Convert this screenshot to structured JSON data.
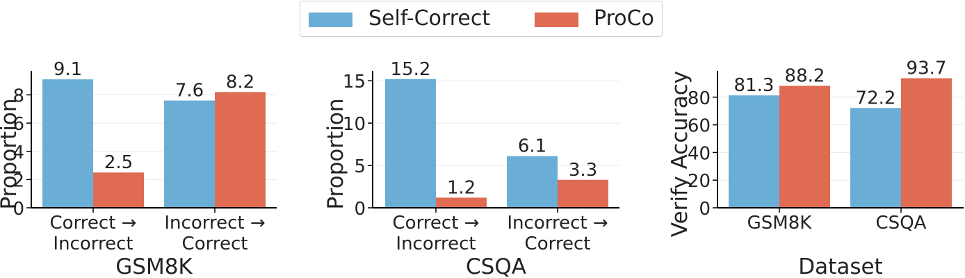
{
  "legend": {
    "items": [
      {
        "label": "Self-Correct",
        "color": "#6aaed6"
      },
      {
        "label": "ProCo",
        "color": "#de6b52"
      }
    ]
  },
  "chart_data": [
    {
      "type": "bar",
      "title": "",
      "xlabel": "GSM8K",
      "ylabel": "Proportion",
      "categories": [
        [
          "Correct →",
          "Incorrect"
        ],
        [
          "Incorrect →",
          "Correct"
        ]
      ],
      "series": [
        {
          "name": "Self-Correct",
          "values": [
            9.1,
            7.6
          ]
        },
        {
          "name": "ProCo",
          "values": [
            2.5,
            8.2
          ]
        }
      ],
      "ylim": [
        0,
        9.6
      ],
      "yticks": [
        0,
        2,
        4,
        6,
        8
      ],
      "grid": "horizontal"
    },
    {
      "type": "bar",
      "title": "",
      "xlabel": "CSQA",
      "ylabel": "Proportion",
      "categories": [
        [
          "Correct →",
          "Incorrect"
        ],
        [
          "Incorrect →",
          "Correct"
        ]
      ],
      "series": [
        {
          "name": "Self-Correct",
          "values": [
            15.2,
            6.1
          ]
        },
        {
          "name": "ProCo",
          "values": [
            1.2,
            3.3
          ]
        }
      ],
      "ylim": [
        0,
        16
      ],
      "yticks": [
        0,
        5,
        10,
        15
      ],
      "grid": "horizontal"
    },
    {
      "type": "bar",
      "title": "",
      "xlabel": "Dataset",
      "ylabel": "Verify Accuracy",
      "categories": [
        [
          "GSM8K"
        ],
        [
          "CSQA"
        ]
      ],
      "series": [
        {
          "name": "Self-Correct",
          "values": [
            81.3,
            72.2
          ]
        },
        {
          "name": "ProCo",
          "values": [
            88.2,
            93.7
          ]
        }
      ],
      "ylim": [
        0,
        98
      ],
      "yticks": [
        0,
        20,
        40,
        60,
        80
      ],
      "grid": "horizontal"
    }
  ]
}
